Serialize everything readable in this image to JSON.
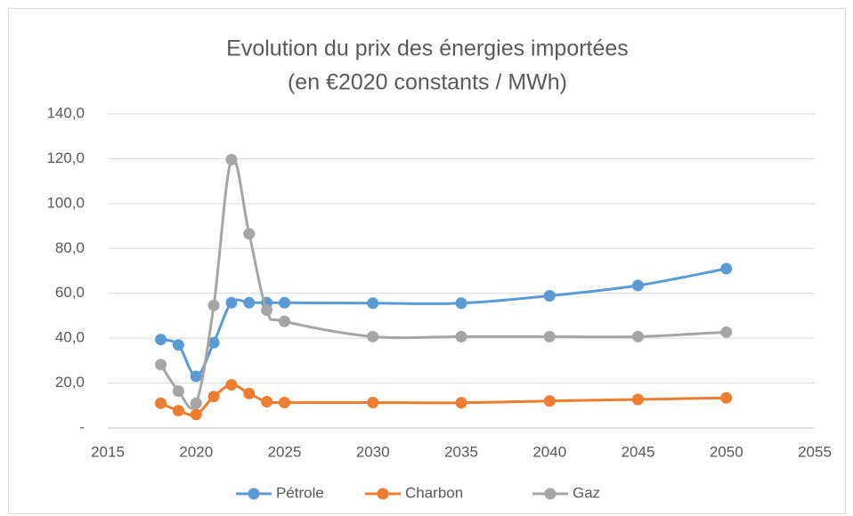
{
  "chart_data": {
    "type": "line",
    "title": "Evolution du prix des énergies importées",
    "subtitle": "(en €2020 constants / MWh)",
    "x": [
      2018,
      2019,
      2020,
      2021,
      2022,
      2023,
      2024,
      2025,
      2030,
      2035,
      2040,
      2045,
      2050
    ],
    "series": [
      {
        "name": "Pétrole",
        "color": "#5b9bd5",
        "values": [
          39.4,
          37.0,
          23.0,
          38.0,
          55.8,
          55.8,
          55.8,
          55.8,
          55.6,
          55.6,
          58.9,
          63.5,
          71.0
        ]
      },
      {
        "name": "Charbon",
        "color": "#ed7d31",
        "values": [
          11.0,
          7.7,
          6.0,
          14.0,
          19.2,
          15.3,
          11.7,
          11.3,
          11.3,
          11.2,
          12.0,
          12.7,
          13.4
        ]
      },
      {
        "name": "Gaz",
        "color": "#a5a5a5",
        "values": [
          28.2,
          16.4,
          11.0,
          54.6,
          119.6,
          86.5,
          52.5,
          47.5,
          40.7,
          40.7,
          40.7,
          40.7,
          42.7
        ]
      }
    ],
    "xlim": [
      2015,
      2055
    ],
    "xticks": [
      2015,
      2020,
      2025,
      2030,
      2035,
      2040,
      2045,
      2050,
      2055
    ],
    "ylim": [
      0,
      140
    ],
    "yticks": [
      {
        "value": 0,
        "label": "-"
      },
      {
        "value": 20,
        "label": "20,0"
      },
      {
        "value": 40,
        "label": "40,0"
      },
      {
        "value": 60,
        "label": "60,0"
      },
      {
        "value": 80,
        "label": "80,0"
      },
      {
        "value": 100,
        "label": "100,0"
      },
      {
        "value": 120,
        "label": "120,0"
      },
      {
        "value": 140,
        "label": "140,0"
      }
    ],
    "grid": true,
    "smooth": true,
    "legend": "bottom"
  }
}
